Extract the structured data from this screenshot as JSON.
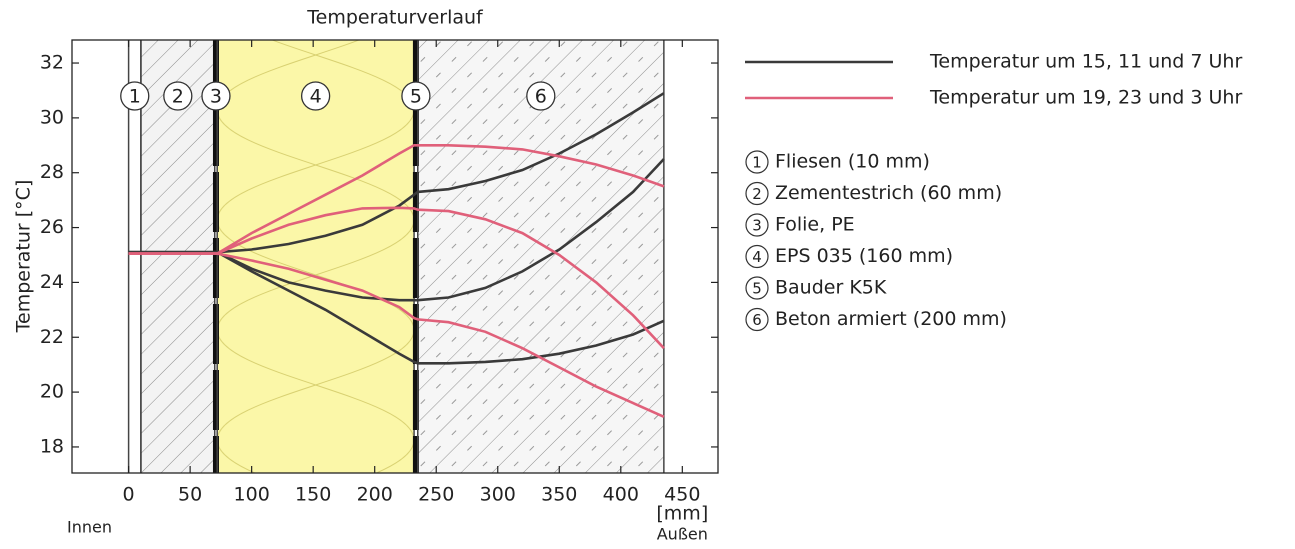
{
  "chart_data": {
    "type": "line",
    "title": "Temperaturverlauf",
    "ylabel": "Temperatur [°C]",
    "x_unit": "[mm]",
    "inner_label": "Innen",
    "outer_label": "Außen",
    "xlim": [
      -46,
      479
    ],
    "ylim": [
      17.05,
      32.84
    ],
    "xticks": [
      0,
      50,
      100,
      150,
      200,
      250,
      300,
      350,
      400,
      450
    ],
    "yticks": [
      18,
      20,
      22,
      24,
      26,
      28,
      30,
      32
    ],
    "x": [
      0,
      10,
      70,
      72,
      100,
      130,
      160,
      190,
      220,
      232,
      235,
      260,
      290,
      320,
      350,
      380,
      410,
      435
    ],
    "series": [
      {
        "name": "Temperatur um 15, 11 und 7 Uhr",
        "color": "#3a3a3a",
        "curves": [
          [
            25.1,
            25.1,
            25.1,
            25.1,
            25.2,
            25.4,
            25.7,
            26.1,
            26.8,
            27.2,
            27.3,
            27.4,
            27.7,
            28.1,
            28.7,
            29.4,
            30.2,
            30.9
          ],
          [
            25.1,
            25.1,
            25.1,
            25.1,
            24.5,
            24.0,
            23.7,
            23.45,
            23.35,
            23.35,
            23.35,
            23.45,
            23.8,
            24.4,
            25.2,
            26.2,
            27.3,
            28.5
          ],
          [
            25.1,
            25.1,
            25.1,
            25.1,
            24.4,
            23.7,
            23.0,
            22.2,
            21.4,
            21.1,
            21.05,
            21.05,
            21.1,
            21.2,
            21.4,
            21.7,
            22.1,
            22.6
          ]
        ]
      },
      {
        "name": "Temperatur um 19, 23 und 3 Uhr",
        "color": "#e0607a",
        "curves": [
          [
            25.05,
            25.05,
            25.05,
            25.05,
            25.8,
            26.5,
            27.2,
            27.9,
            28.7,
            29.0,
            29.0,
            29.0,
            28.95,
            28.85,
            28.6,
            28.3,
            27.9,
            27.5
          ],
          [
            25.05,
            25.05,
            25.05,
            25.05,
            25.6,
            26.1,
            26.45,
            26.7,
            26.72,
            26.7,
            26.65,
            26.6,
            26.3,
            25.8,
            25.0,
            24.0,
            22.8,
            21.6
          ],
          [
            25.05,
            25.05,
            25.05,
            25.05,
            24.8,
            24.5,
            24.1,
            23.7,
            23.1,
            22.7,
            22.65,
            22.55,
            22.2,
            21.6,
            20.9,
            20.2,
            19.6,
            19.1
          ]
        ]
      }
    ],
    "layers": [
      {
        "number": "1",
        "name": "Fliesen (10 mm)",
        "start": 0,
        "end": 10
      },
      {
        "number": "2",
        "name": "Zementestrich (60 mm)",
        "start": 10,
        "end": 70
      },
      {
        "number": "3",
        "name": "Folie, PE",
        "start": 70,
        "end": 72
      },
      {
        "number": "4",
        "name": "EPS 035 (160 mm)",
        "start": 72,
        "end": 232
      },
      {
        "number": "5",
        "name": "Bauder K5K",
        "start": 232,
        "end": 235
      },
      {
        "number": "6",
        "name": "Beton armiert (200 mm)",
        "start": 235,
        "end": 435
      }
    ]
  }
}
